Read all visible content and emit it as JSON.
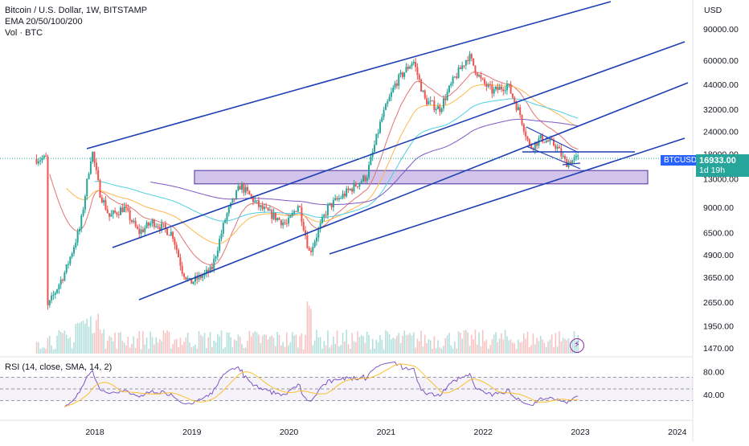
{
  "chart_data": {
    "type": "candlestick",
    "title": "Bitcoin / U.S. Dollar, 1W, BITSTAMP",
    "symbol": "BTCUSD",
    "indicators": [
      "EMA 20/50/100/200",
      "Vol · BTC"
    ],
    "currency_label": "USD",
    "last_price": "16933.00",
    "countdown": "1d 19h",
    "price_axis_ticks": [
      "90000.00",
      "60000.00",
      "44000.00",
      "32000.00",
      "24000.00",
      "18000.00",
      "13000.00",
      "9000.00",
      "6500.00",
      "4900.00",
      "3650.00",
      "2650.00",
      "1950.00",
      "1470.00"
    ],
    "x_ticks": [
      "2018",
      "2019",
      "2020",
      "2021",
      "2022",
      "2023",
      "2024"
    ],
    "price_path": [
      {
        "t": 2017.5,
        "p": 2400
      },
      {
        "t": 2017.7,
        "p": 4000
      },
      {
        "t": 2017.85,
        "p": 7000
      },
      {
        "t": 2017.97,
        "p": 19000
      },
      {
        "t": 2018.05,
        "p": 11000
      },
      {
        "t": 2018.15,
        "p": 8000
      },
      {
        "t": 2018.3,
        "p": 9000
      },
      {
        "t": 2018.45,
        "p": 6500
      },
      {
        "t": 2018.6,
        "p": 7500
      },
      {
        "t": 2018.8,
        "p": 6400
      },
      {
        "t": 2018.9,
        "p": 4000
      },
      {
        "t": 2018.98,
        "p": 3400
      },
      {
        "t": 2019.2,
        "p": 4000
      },
      {
        "t": 2019.35,
        "p": 8000
      },
      {
        "t": 2019.5,
        "p": 12000
      },
      {
        "t": 2019.7,
        "p": 9000
      },
      {
        "t": 2019.85,
        "p": 8000
      },
      {
        "t": 2019.98,
        "p": 7200
      },
      {
        "t": 2020.1,
        "p": 9500
      },
      {
        "t": 2020.21,
        "p": 5000
      },
      {
        "t": 2020.4,
        "p": 9000
      },
      {
        "t": 2020.6,
        "p": 11000
      },
      {
        "t": 2020.8,
        "p": 13500
      },
      {
        "t": 2020.95,
        "p": 28000
      },
      {
        "t": 2021.1,
        "p": 45000
      },
      {
        "t": 2021.28,
        "p": 60000
      },
      {
        "t": 2021.4,
        "p": 36000
      },
      {
        "t": 2021.55,
        "p": 32000
      },
      {
        "t": 2021.7,
        "p": 47000
      },
      {
        "t": 2021.85,
        "p": 64000
      },
      {
        "t": 2021.98,
        "p": 46000
      },
      {
        "t": 2022.1,
        "p": 40000
      },
      {
        "t": 2022.25,
        "p": 44000
      },
      {
        "t": 2022.38,
        "p": 30000
      },
      {
        "t": 2022.48,
        "p": 19500
      },
      {
        "t": 2022.6,
        "p": 22000
      },
      {
        "t": 2022.75,
        "p": 20000
      },
      {
        "t": 2022.85,
        "p": 16000
      },
      {
        "t": 2022.97,
        "p": 16900
      }
    ],
    "ema_periods": [
      20,
      50,
      100,
      200
    ],
    "rsi_label": "RSI (14, close, SMA, 14, 2)",
    "rsi_ticks": [
      "80.00",
      "40.00"
    ],
    "rsi_bands": {
      "upper": 70,
      "middle": 50,
      "lower": 30
    }
  },
  "colors": {
    "up": "#26a69a",
    "down": "#ef5350",
    "channel": "#1e3fb4",
    "zone": "#7e57c2",
    "ema20": "#e57373",
    "ema50": "#ffb74d",
    "ema100": "#4dd0e1",
    "ema200": "#7e57c2",
    "rsi": "#7e57c2",
    "rsi_ma": "#fbc02d",
    "badge": "#26a69a",
    "symbol_badge": "#2962ff"
  }
}
